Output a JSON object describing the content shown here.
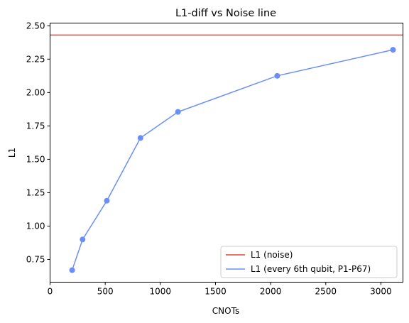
{
  "chart_data": {
    "type": "line",
    "title": "L1-diff vs Noise line",
    "xlabel": "CNOTs",
    "ylabel": "L1",
    "xlim": [
      0,
      3200
    ],
    "ylim": [
      0.58,
      2.52
    ],
    "x_ticks": [
      0,
      500,
      1000,
      1500,
      2000,
      2500,
      3000
    ],
    "y_ticks": [
      0.75,
      1.0,
      1.25,
      1.5,
      1.75,
      2.0,
      2.25,
      2.5
    ],
    "x_tick_labels": [
      "0",
      "500",
      "1000",
      "1500",
      "2000",
      "2500",
      "3000"
    ],
    "y_tick_labels": [
      "0.75",
      "1.00",
      "1.25",
      "1.50",
      "1.75",
      "2.00",
      "2.25",
      "2.50"
    ],
    "grid": false,
    "legend_position": "lower-right",
    "series": [
      {
        "name": "L1 (noise)",
        "kind": "hline",
        "color": "#e8453c",
        "y": 2.43
      },
      {
        "name": "L1 (every 6th qubit, P1-P67)",
        "kind": "line-markers",
        "color": "#6a8ef5",
        "x": [
          200,
          295,
          515,
          820,
          1160,
          2060,
          3110
        ],
        "y": [
          0.67,
          0.9,
          1.19,
          1.66,
          1.855,
          2.125,
          2.32
        ]
      }
    ]
  }
}
